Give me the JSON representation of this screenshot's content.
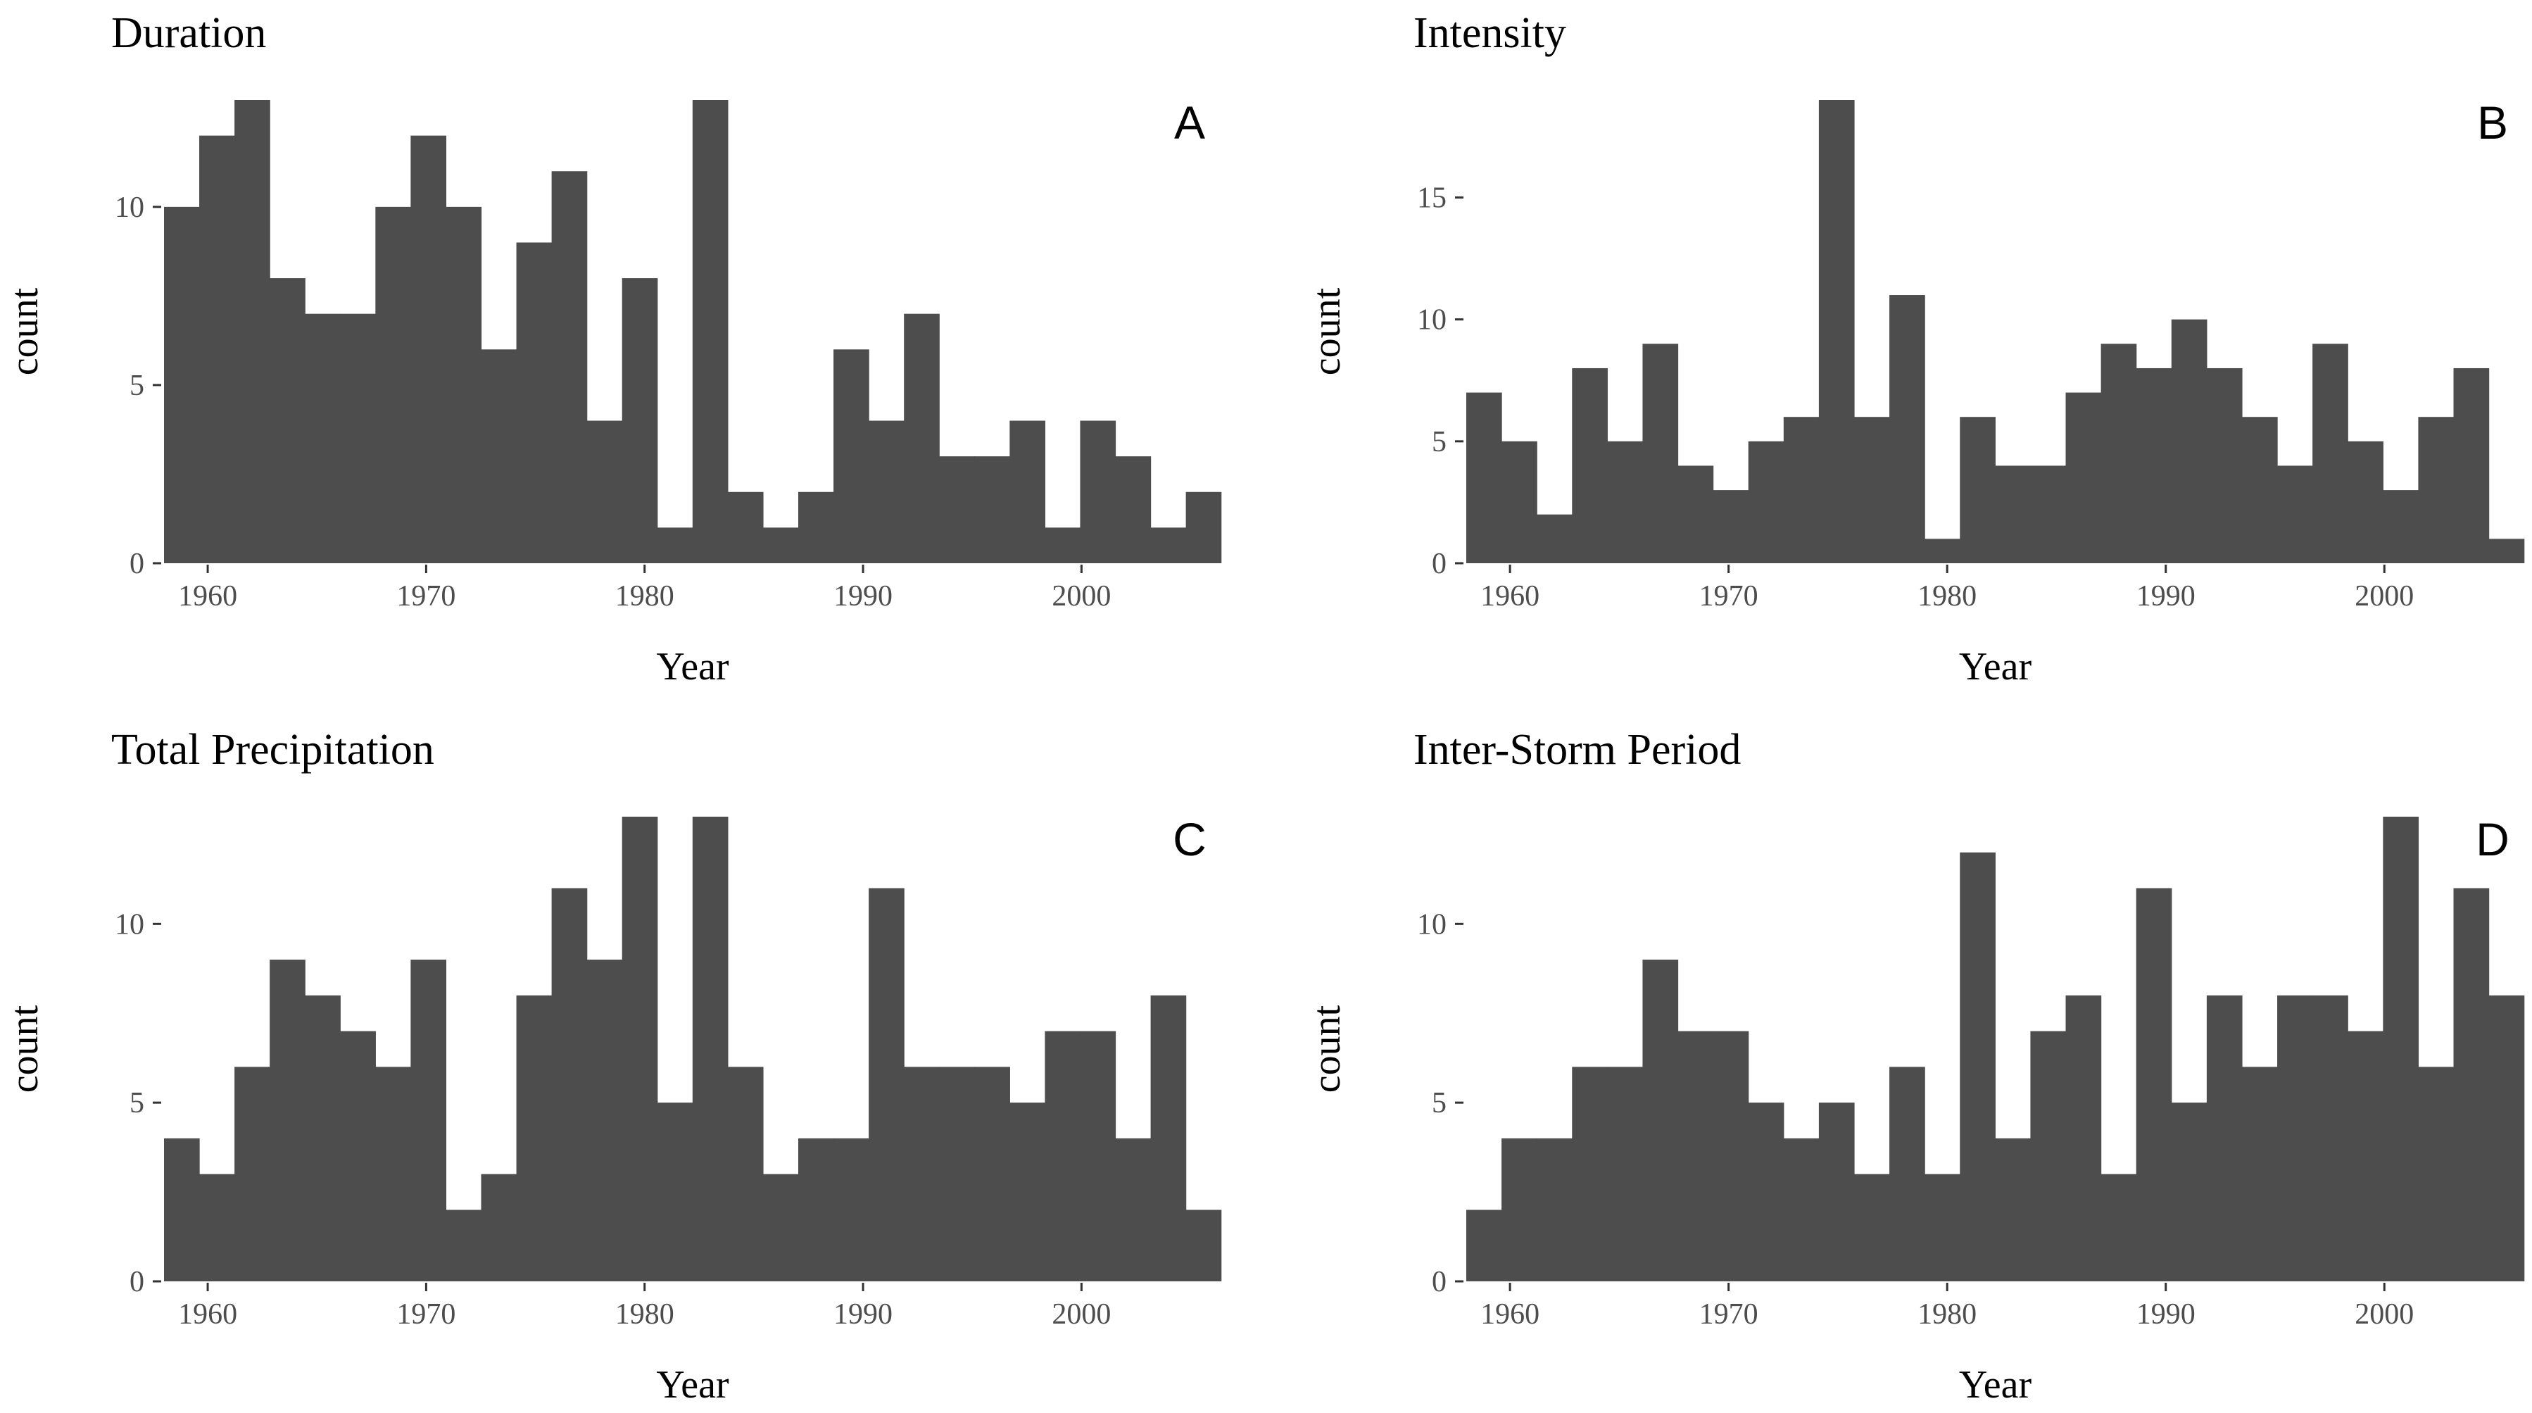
{
  "chart_data": [
    {
      "type": "bar",
      "id": "A",
      "title": "Duration",
      "letter": "A",
      "xlabel": "Year",
      "ylabel": "count",
      "xlim": [
        1958,
        2006.4
      ],
      "ylim": [
        0,
        13
      ],
      "x_ticks": [
        1960,
        1970,
        1980,
        1990,
        2000
      ],
      "y_ticks": [
        0,
        5,
        10
      ],
      "bin_start": 1958,
      "bin_width": 1.613,
      "values": [
        10,
        12,
        13,
        8,
        7,
        7,
        10,
        12,
        10,
        6,
        9,
        11,
        4,
        8,
        1,
        13,
        2,
        1,
        2,
        6,
        4,
        7,
        3,
        3,
        4,
        1,
        4,
        3,
        1,
        2
      ]
    },
    {
      "type": "bar",
      "id": "B",
      "title": "Intensity",
      "letter": "B",
      "xlabel": "Year",
      "ylabel": "count",
      "xlim": [
        1958,
        2006.4
      ],
      "ylim": [
        0,
        19
      ],
      "x_ticks": [
        1960,
        1970,
        1980,
        1990,
        2000
      ],
      "y_ticks": [
        0,
        5,
        10,
        15
      ],
      "bin_start": 1958,
      "bin_width": 1.613,
      "values": [
        7,
        5,
        2,
        8,
        5,
        9,
        4,
        3,
        5,
        6,
        19,
        6,
        11,
        1,
        6,
        4,
        4,
        7,
        9,
        8,
        10,
        8,
        6,
        4,
        9,
        5,
        3,
        6,
        8,
        1
      ]
    },
    {
      "type": "bar",
      "id": "C",
      "title": "Total Precipitation",
      "letter": "C",
      "xlabel": "Year",
      "ylabel": "count",
      "xlim": [
        1958,
        2006.4
      ],
      "ylim": [
        0,
        13
      ],
      "x_ticks": [
        1960,
        1970,
        1980,
        1990,
        2000
      ],
      "y_ticks": [
        0,
        5,
        10
      ],
      "bin_start": 1958,
      "bin_width": 1.613,
      "values": [
        4,
        3,
        6,
        9,
        8,
        7,
        6,
        9,
        2,
        3,
        8,
        11,
        9,
        13,
        5,
        13,
        6,
        3,
        4,
        4,
        11,
        6,
        6,
        6,
        5,
        7,
        7,
        4,
        8,
        2
      ]
    },
    {
      "type": "bar",
      "id": "D",
      "title": "Inter-Storm Period",
      "letter": "D",
      "xlabel": "Year",
      "ylabel": "count",
      "xlim": [
        1958,
        2006.4
      ],
      "ylim": [
        0,
        13
      ],
      "x_ticks": [
        1960,
        1970,
        1980,
        1990,
        2000
      ],
      "y_ticks": [
        0,
        5,
        10
      ],
      "bin_start": 1958,
      "bin_width": 1.613,
      "values": [
        2,
        4,
        4,
        6,
        6,
        9,
        7,
        7,
        5,
        4,
        5,
        3,
        6,
        3,
        12,
        4,
        7,
        8,
        3,
        11,
        5,
        8,
        6,
        8,
        8,
        7,
        13,
        6,
        11,
        8
      ]
    }
  ]
}
